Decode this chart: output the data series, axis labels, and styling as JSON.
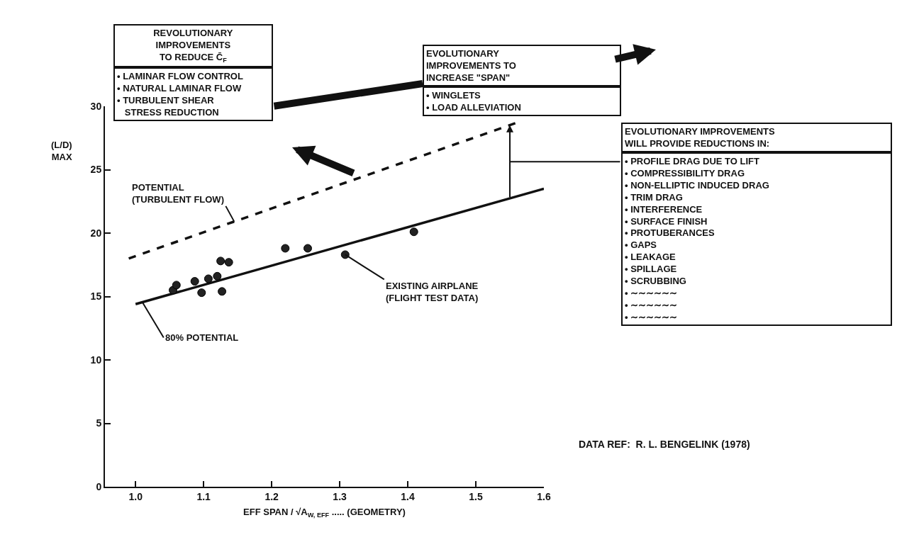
{
  "chart_data": {
    "type": "scatter",
    "xlabel": "EFF SPAN / √A$_{W, EFF}$ ..... (GEOMETRY)",
    "ylabel": "(L/D)\nMAX",
    "xlim": [
      0.955,
      1.6
    ],
    "xticks": [
      {
        "value": 1.0,
        "label": "1.0"
      },
      1.1,
      1.2,
      1.3,
      1.4,
      1.5,
      {
        "value": 1.6,
        "label": "1.6"
      }
    ],
    "ylim": [
      0,
      30
    ],
    "yticks": [
      0,
      5,
      10,
      15,
      20,
      25,
      30
    ],
    "series": [
      {
        "type": "line",
        "line_style": "solid",
        "color": "#111111",
        "x": [
          1.0,
          1.6
        ],
        "values": [
          14.4,
          23.5
        ]
      },
      {
        "type": "line",
        "line_style": "dashed",
        "color": "#111111",
        "x": [
          0.99,
          1.56
        ],
        "values": [
          18.0,
          28.7
        ]
      },
      {
        "marker": "circle",
        "color": "#222222",
        "x": [
          1.055,
          1.06,
          1.087,
          1.097,
          1.107,
          1.12,
          1.127,
          1.125,
          1.137,
          1.22,
          1.253,
          1.308,
          1.409
        ],
        "values": [
          15.5,
          15.9,
          16.2,
          15.3,
          16.4,
          16.6,
          15.4,
          17.8,
          17.7,
          18.8,
          18.8,
          18.3,
          20.1
        ]
      }
    ],
    "annotations": [
      "REVOLUTIONARY\nIMPROVEMENTS\nTO REDUCE C̄$_{F}$",
      "• LAMINAR FLOW CONTROL\n• NATURAL LAMINAR FLOW\n• TURBULENT SHEAR\n   STRESS REDUCTION",
      "EVOLUTIONARY\nIMPROVEMENTS TO\nINCREASE \"SPAN\"",
      "• WINGLETS\n• LOAD ALLEVIATION",
      "EVOLUTIONARY IMPROVEMENTS\nWILL PROVIDE REDUCTIONS IN:",
      "• PROFILE DRAG DUE TO LIFT\n• COMPRESSIBILITY DRAG\n• NON-ELLIPTIC INDUCED DRAG\n• TRIM DRAG\n• INTERFERENCE\n• SURFACE FINISH\n• PROTUBERANCES\n• GAPS\n• LEAKAGE\n• SPILLAGE\n• SCRUBBING\n• ∼∼∼∼∼∼\n• ∼∼∼∼∼∼\n• ∼∼∼∼∼∼",
      "DATA REF:  R. L. BENGELINK (1978)",
      {
        "text": "POTENTIAL\n(TURBULENT FLOW)",
        "x": 1.145,
        "y": 20.9
      },
      {
        "text": "80% POTENTIAL",
        "x": 1.01,
        "y": 14.55
      },
      {
        "text": "EXISTING AIRPLANE\n(FLIGHT TEST DATA)",
        "x": 1.308,
        "y": 18.3
      }
    ]
  }
}
